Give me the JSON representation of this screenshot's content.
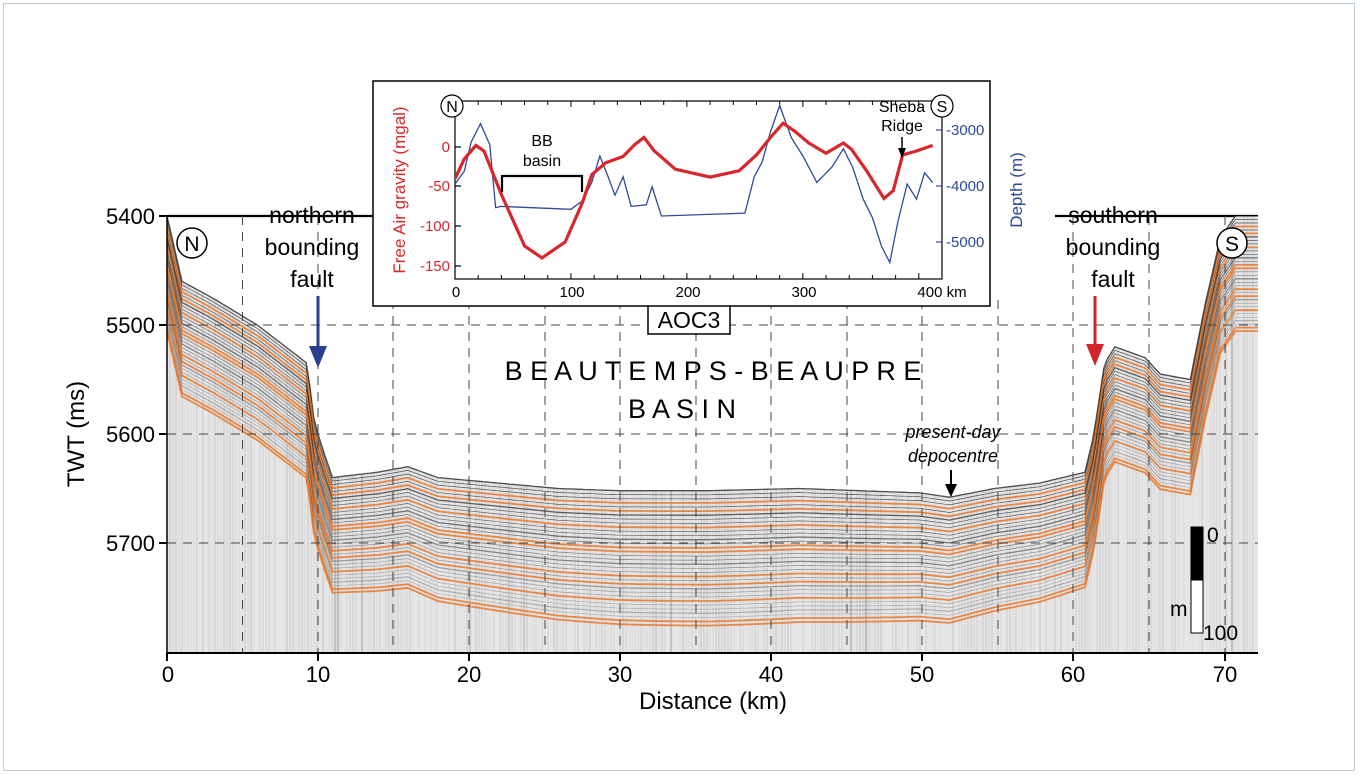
{
  "main_profile": {
    "y_axis_label": "TWT (ms)",
    "x_axis_label": "Distance (km)",
    "y_ticks": [
      "5400",
      "5500",
      "5600",
      "5700"
    ],
    "x_ticks": [
      "0",
      "10",
      "20",
      "30",
      "40",
      "50",
      "60",
      "70"
    ],
    "x_range_km": [
      0,
      72.5
    ],
    "y_range_ms": [
      5400,
      5800
    ],
    "north_marker": "N",
    "south_marker": "S",
    "line_name": "AOC3",
    "basin_title_line1": "B E A U T E M P S - B E A U P R E",
    "basin_title_line2": "B A S I N",
    "northern_fault_line1": "northern",
    "northern_fault_line2": "bounding",
    "northern_fault_line3": "fault",
    "southern_fault_line1": "southern",
    "southern_fault_line2": "bounding",
    "southern_fault_line3": "fault",
    "depocentre_line1": "present-day",
    "depocentre_line2": "depocentre",
    "scale_bar_top": "0",
    "scale_bar_unit": "m",
    "scale_bar_bottom": "100",
    "northern_fault_arrow_color": "#2a3f8f",
    "southern_fault_arrow_color": "#d0262b",
    "reflector_highlight_color": "#e8772a"
  },
  "inset": {
    "left_axis_label": "Free Air gravity (mgal)",
    "right_axis_label": "Depth (m)",
    "left_ticks": [
      "0",
      "-50",
      "-100",
      "-150"
    ],
    "right_ticks": [
      "-3000",
      "-4000",
      "-5000"
    ],
    "x_ticks": [
      "0",
      "100",
      "200",
      "300",
      "400 km"
    ],
    "north_marker": "N",
    "south_marker": "S",
    "bb_basin_line1": "BB",
    "bb_basin_line2": "basin",
    "sheba_line1": "Sheba",
    "sheba_line2": "Ridge",
    "gravity_color": "#d9262b",
    "depth_color": "#2e4a96"
  }
}
